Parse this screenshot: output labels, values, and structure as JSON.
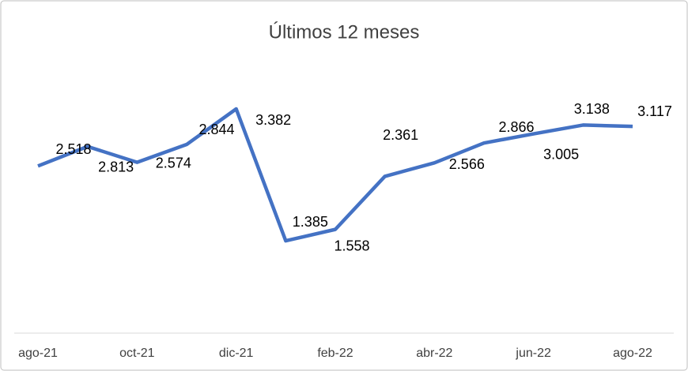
{
  "chart_data": {
    "type": "line",
    "title": "Últimos 12 meses",
    "categories": [
      "ago-21",
      null,
      "oct-21",
      null,
      "dic-21",
      null,
      "feb-22",
      null,
      "abr-22",
      null,
      "jun-22",
      null,
      "ago-22"
    ],
    "series": [
      {
        "color": "#4472c4",
        "values": [
          2.518,
          2.813,
          2.574,
          2.844,
          3.382,
          1.385,
          1.558,
          2.361,
          2.566,
          2.866,
          3.005,
          3.138,
          3.117
        ]
      }
    ]
  }
}
